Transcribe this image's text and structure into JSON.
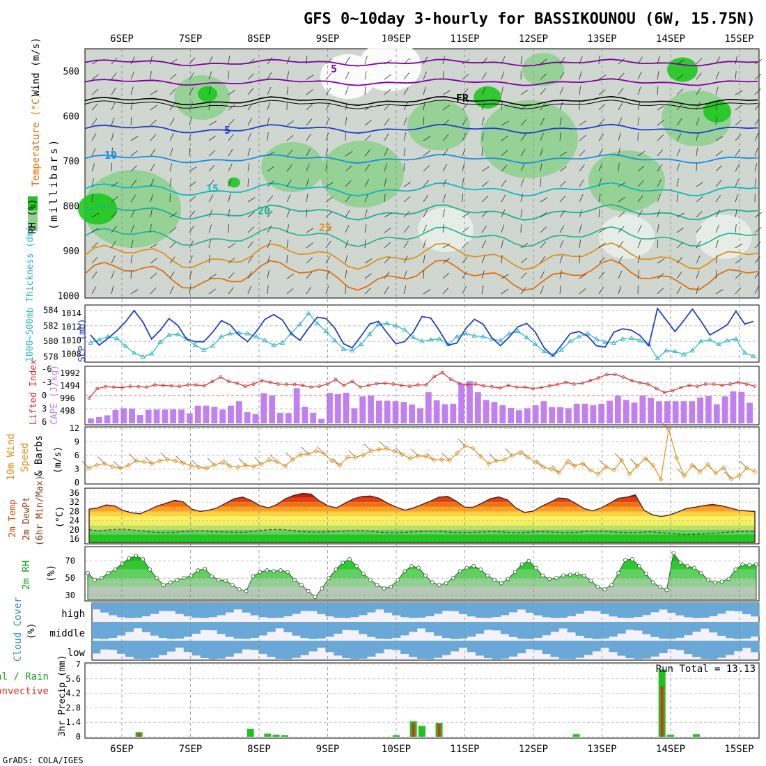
{
  "title": "GFS 0~10day 3-hourly for BASSIKOUNOU (6W, 15.75N)",
  "credit": "GrADS: COLA/IGES",
  "date_labels": [
    "6SEP",
    "7SEP",
    "8SEP",
    "9SEP",
    "10SEP",
    "11SEP",
    "12SEP",
    "13SEP",
    "14SEP",
    "15SEP"
  ],
  "colors": {
    "rh_green": "#1ec81e",
    "rh_light": "#7fd07f",
    "rh_pale": "#b6d6b6",
    "rh_grey": "#bfc8bf",
    "slp": "#1f3fc8",
    "thickness": "#2ab4c8",
    "cape": "#c080f0",
    "lifted": "#d03030",
    "wind10": "#e09020",
    "temp_dark": "#902020",
    "cloud": "#6aa8d8",
    "precip_total": "#20c020",
    "precip_conv": "#e03020"
  },
  "panels": {
    "profile": {
      "ylabel": "(millibars)",
      "legend": [
        "RH (%)",
        "Temperature (°C)",
        "Wind (m/s)"
      ],
      "yticks": [
        "500",
        "600",
        "700",
        "800",
        "900",
        "1000"
      ],
      "contour_labels": [
        {
          "t": "5",
          "key": "t500"
        },
        {
          "t": "FR",
          "key": "fr"
        },
        {
          "t": "5",
          "key": "t600"
        },
        {
          "t": "10",
          "key": "t10"
        },
        {
          "t": "15",
          "key": "t15"
        },
        {
          "t": "20",
          "key": "t20"
        },
        {
          "t": "25",
          "key": "t25"
        }
      ]
    },
    "slp": {
      "left_label": "1000~500mb Thickness (dm)",
      "right_label": "SLP (mb)",
      "left_ticks": [
        "584",
        "582",
        "580",
        "578"
      ],
      "right_ticks": [
        "1014",
        "1012",
        "1010",
        "1008"
      ]
    },
    "cape": {
      "left_label": "Lifted Index",
      "right_label": "CAPE (J/kg)",
      "left_ticks": [
        "-6",
        "-3",
        "0",
        "3",
        "6"
      ],
      "right_ticks": [
        "1992",
        "1494",
        "996",
        "498"
      ]
    },
    "wind": {
      "label_a": "10m Wind",
      "label_b": "Speed",
      "label_c": "& Barbs",
      "unit": "(m/s)",
      "ticks": [
        "12",
        "9",
        "6",
        "3",
        "0"
      ]
    },
    "temp": {
      "label_a": "2m Temp",
      "label_b": "2m DewPt",
      "label_c": "(6hr Min/Max)",
      "unit": "(°C)",
      "ticks": [
        "36",
        "32",
        "28",
        "24",
        "20",
        "16"
      ]
    },
    "rh": {
      "label": "2m RH",
      "unit": "(%)",
      "ticks": [
        "70",
        "50",
        "30"
      ]
    },
    "cloud": {
      "label": "Cloud Cover",
      "unit": "(%)",
      "levels": [
        "high",
        "middle",
        "low"
      ]
    },
    "precip": {
      "label_a": "Total / Rain",
      "label_b": "Convective",
      "ylabel": "3hr Precip (mm)",
      "ticks": [
        "7",
        "5.6",
        "4.2",
        "2.8",
        "1.4",
        "0"
      ],
      "run_total": "Run Total = 13.13"
    }
  },
  "chart_data": [
    {
      "type": "line",
      "name": "SLP and thickness",
      "x_unit": "3-hourly steps from 5SEP 21Z",
      "series": [
        {
          "name": "SLP (mb)",
          "values": [
            1010.8,
            1009.3,
            1010.3,
            1011.4,
            1012.7,
            1014.4,
            1012.7,
            1010.2,
            1011.5,
            1013.2,
            1012.2,
            1010.2,
            1009.8,
            1009.8,
            1011.2,
            1012.9,
            1012.3,
            1010.8,
            1009.8,
            1011.3,
            1013.1,
            1013.8,
            1013.0,
            1011.0,
            1010.0,
            1011.8,
            1013.4,
            1013.2,
            1011.8,
            1009.5,
            1008.9,
            1010.6,
            1012.4,
            1012.8,
            1011.1,
            1009.5,
            1009.8,
            1011.2,
            1013.5,
            1013.3,
            1011.4,
            1009.3,
            1009.6,
            1011.7,
            1013.1,
            1012.4,
            1010.4,
            1009.2,
            1010.5,
            1012.0,
            1012.5,
            1011.2,
            1008.9,
            1007.7,
            1009.3,
            1011.0,
            1011.3,
            1010.6,
            1009.2,
            1009.0,
            1011.2,
            1011.7,
            1011.5,
            1010.7,
            1009.2,
            1014.7,
            1013.0,
            1011.3,
            1012.9,
            1014.6,
            1012.8,
            1010.8,
            1011.5,
            1012.3,
            1014.3,
            1012.4,
            1012.8
          ]
        },
        {
          "name": "1000~500mb Thickness (dm)",
          "values": [
            579.8,
            580.2,
            580.6,
            580.4,
            579.4,
            578.5,
            578.0,
            578.4,
            579.9,
            580.8,
            580.9,
            580.3,
            579.5,
            578.9,
            579.4,
            580.6,
            581.0,
            581.1,
            581.0,
            580.6,
            580.1,
            579.5,
            579.8,
            581.0,
            582.2,
            583.6,
            582.3,
            581.3,
            580.1,
            579.0,
            578.8,
            579.6,
            580.9,
            582.2,
            582.3,
            582.0,
            581.5,
            580.5,
            580.0,
            580.2,
            580.3,
            579.6,
            580.6,
            581.0,
            580.7,
            580.6,
            580.3,
            580.1,
            581.0,
            581.3,
            580.5,
            579.6,
            578.7,
            578.2,
            578.9,
            580.0,
            580.6,
            581.0,
            580.3,
            579.9,
            579.8,
            580.3,
            580.4,
            580.1,
            579.6,
            577.8,
            578.8,
            578.7,
            578.3,
            578.8,
            580.0,
            580.2,
            579.6,
            580.1,
            580.3,
            578.5,
            578.1
          ]
        }
      ]
    },
    {
      "type": "bar",
      "name": "CAPE (J/kg) and Lifted Index",
      "series": [
        {
          "name": "CAPE (J/kg)",
          "values": [
            200,
            250,
            320,
            530,
            600,
            590,
            330,
            540,
            550,
            550,
            560,
            550,
            400,
            700,
            700,
            660,
            550,
            700,
            880,
            450,
            370,
            1200,
            1120,
            420,
            410,
            1400,
            660,
            420,
            180,
            1210,
            1160,
            1220,
            600,
            1070,
            1100,
            900,
            900,
            880,
            850,
            750,
            600,
            1240,
            920,
            760,
            780,
            1580,
            1680,
            1240,
            930,
            850,
            720,
            610,
            520,
            600,
            720,
            880,
            650,
            650,
            600,
            780,
            780,
            720,
            780,
            900,
            1100,
            930,
            830,
            1110,
            1020,
            880,
            880,
            880,
            880,
            880,
            1030,
            1080,
            760,
            1070,
            1270,
            1250,
            820
          ]
        },
        {
          "name": "Lifted Index",
          "values": [
            0.6,
            -1.6,
            -2.0,
            -1.9,
            -1.8,
            -2.1,
            -2.0,
            -1.9,
            -2.4,
            -2.3,
            -2.2,
            -2.1,
            -2.4,
            -2.4,
            -2.2,
            -3.2,
            -4.2,
            -3.2,
            -2.8,
            -2.1,
            -2.6,
            -3.4,
            -3.0,
            -2.6,
            -2.5,
            -2.5,
            -2.3,
            -1.9,
            -2.1,
            -2.6,
            -3.6,
            -2.3,
            -3.2,
            -1.9,
            -2.3,
            -2.7,
            -2.8,
            -2.6,
            -2.3,
            -2.1,
            -2.4,
            -2.4,
            -4.3,
            -5.2,
            -3.7,
            -2.8,
            -2.4,
            -2.6,
            -2.2,
            -2.0,
            -1.7,
            -2.3,
            -1.9,
            -1.9,
            -1.6,
            -1.8,
            -2.2,
            -2.5,
            -3.0,
            -2.6,
            -2.8,
            -3.4,
            -4.0,
            -4.8,
            -4.8,
            -4.2,
            -3.4,
            -2.9,
            -2.6,
            -1.6,
            -0.7,
            -1.1,
            -1.8,
            -2.3,
            -2.1,
            -2.6,
            -2.6,
            -2.3,
            -2.6,
            -3.0,
            -2.6,
            -2.1
          ]
        }
      ]
    },
    {
      "type": "line",
      "name": "10m Wind Speed (m/s)",
      "series": [
        {
          "name": "10m wind speed",
          "values": [
            3.2,
            3.9,
            4.2,
            3.5,
            3.2,
            3.8,
            4.8,
            4.6,
            4.2,
            4.8,
            5.1,
            4.8,
            4.3,
            3.8,
            3.4,
            3.2,
            3.9,
            4.4,
            3.6,
            3.4,
            3.8,
            3.6,
            4.1,
            5.0,
            4.6,
            3.7,
            5.1,
            6.2,
            6.3,
            7.0,
            6.4,
            4.8,
            3.8,
            5.6,
            5.6,
            6.1,
            7.0,
            7.3,
            7.5,
            6.9,
            6.2,
            5.3,
            5.9,
            5.8,
            5.0,
            5.1,
            4.9,
            6.5,
            8.1,
            7.6,
            5.8,
            4.2,
            4.8,
            5.0,
            6.0,
            6.6,
            5.6,
            4.5,
            3.4,
            3.0,
            2.2,
            4.5,
            3.7,
            4.2,
            2.7,
            1.9,
            3.5,
            2.8,
            4.9,
            1.9,
            3.7,
            5.3,
            3.8,
            0.7,
            11.8,
            5.5,
            1.5,
            3.8,
            2.4,
            4.0,
            2.1,
            3.3,
            0.8,
            1.5,
            3.2,
            2.4
          ]
        }
      ]
    },
    {
      "type": "area",
      "name": "2m Temp / DewPt (°C)",
      "series": [
        {
          "name": "2m Temp",
          "values": [
            29.0,
            29.5,
            30.8,
            30.4,
            28.4,
            27.4,
            27.0,
            28.6,
            30.4,
            31.5,
            32.8,
            32.2,
            29.0,
            28.0,
            28.5,
            29.5,
            31.5,
            33.5,
            34.2,
            32.7,
            30.5,
            29.5,
            31.0,
            33.5,
            35.0,
            35.8,
            35.5,
            32.5,
            30.4,
            29.5,
            31.6,
            33.5,
            34.5,
            34.7,
            33.7,
            31.5,
            29.8,
            28.5,
            29.5,
            31.0,
            32.5,
            34.2,
            34.5,
            32.5,
            29.8,
            29.8,
            31.5,
            33.5,
            34.3,
            33.0,
            29.5,
            27.5,
            28.1,
            30.2,
            32.0,
            33.8,
            33.5,
            31.5,
            29.2,
            28.2,
            29.5,
            31.5,
            33.7,
            34.2,
            35.2,
            28.5,
            26.5,
            25.8,
            26.4,
            27.8,
            29.3,
            29.8,
            30.5,
            31.0,
            30.5,
            29.6,
            28.6,
            28.2,
            28.0
          ]
        },
        {
          "name": "2m DewPt",
          "values": [
            20.1,
            19.5,
            19.9,
            20.2,
            20.2,
            19.9,
            19.5,
            19.0,
            18.8,
            18.7,
            19.0,
            19.3,
            19.5,
            19.5,
            19.2,
            19.1,
            19.0,
            18.9,
            19.0,
            19.4,
            19.9,
            20.2,
            20.1,
            19.8,
            19.3,
            19.1,
            19.0,
            19.1,
            19.2,
            19.4,
            19.6,
            19.6,
            19.4,
            19.0,
            18.8,
            18.7,
            18.9,
            19.1,
            19.3,
            19.4,
            19.3,
            19.0,
            18.8,
            18.8,
            18.9,
            19.1,
            19.3,
            19.1,
            18.8,
            18.7,
            18.9,
            19.2,
            19.2,
            19.0,
            18.8,
            18.8,
            19.0,
            19.3,
            19.4,
            19.3,
            19.0,
            18.8,
            18.8,
            18.9,
            19.2,
            18.9,
            18.5,
            18.2,
            18.0,
            18.1,
            18.2,
            18.4,
            18.7,
            19.0,
            19.2,
            19.3,
            19.2
          ]
        }
      ]
    },
    {
      "type": "area",
      "name": "2m RH (%)",
      "series": [
        {
          "name": "2m RH",
          "values": [
            56,
            48,
            50,
            56,
            60,
            67,
            73,
            76,
            72,
            60,
            50,
            42,
            45,
            48,
            50,
            53,
            59,
            61,
            52,
            48,
            47,
            42,
            37,
            35,
            52,
            57,
            59,
            58,
            59,
            57,
            48,
            42,
            35,
            28,
            38,
            50,
            60,
            68,
            72,
            64,
            55,
            48,
            42,
            38,
            40,
            48,
            58,
            64,
            62,
            53,
            45,
            42,
            44,
            50,
            58,
            62,
            64,
            60,
            53,
            48,
            44,
            49,
            57,
            66,
            70,
            62,
            53,
            49,
            50,
            53,
            54,
            55,
            53,
            47,
            40,
            37,
            42,
            56,
            71,
            72,
            64,
            55,
            45,
            40,
            36,
            79,
            68,
            64,
            62,
            56,
            48,
            45,
            46,
            49,
            60,
            66,
            65,
            66
          ]
        }
      ]
    },
    {
      "type": "bar",
      "name": "3hr Precip (mm)",
      "series": [
        {
          "name": "Total",
          "values": [
            {
              "x": "6SEP06",
              "v": 0.45
            },
            {
              "x": "7SEP21",
              "v": 0.75
            },
            {
              "x": "8SEP03",
              "v": 0.3
            },
            {
              "x": "8SEP06",
              "v": 0.2
            },
            {
              "x": "8SEP09",
              "v": 0.15
            },
            {
              "x": "10SEP00",
              "v": 0.15
            },
            {
              "x": "10SEP06",
              "v": 1.5
            },
            {
              "x": "10SEP09",
              "v": 1.05
            },
            {
              "x": "10SEP15",
              "v": 1.35
            },
            {
              "x": "12SEP15",
              "v": 0.25
            },
            {
              "x": "13SEP21",
              "v": 6.5
            },
            {
              "x": "14SEP00",
              "v": 0.2
            },
            {
              "x": "14SEP09",
              "v": 0.25
            }
          ]
        },
        {
          "name": "Convective",
          "values": [
            {
              "x": "6SEP06",
              "v": 0.35
            },
            {
              "x": "10SEP06",
              "v": 1.3
            },
            {
              "x": "10SEP15",
              "v": 1.2
            },
            {
              "x": "13SEP21",
              "v": 4.9
            }
          ]
        }
      ]
    }
  ]
}
